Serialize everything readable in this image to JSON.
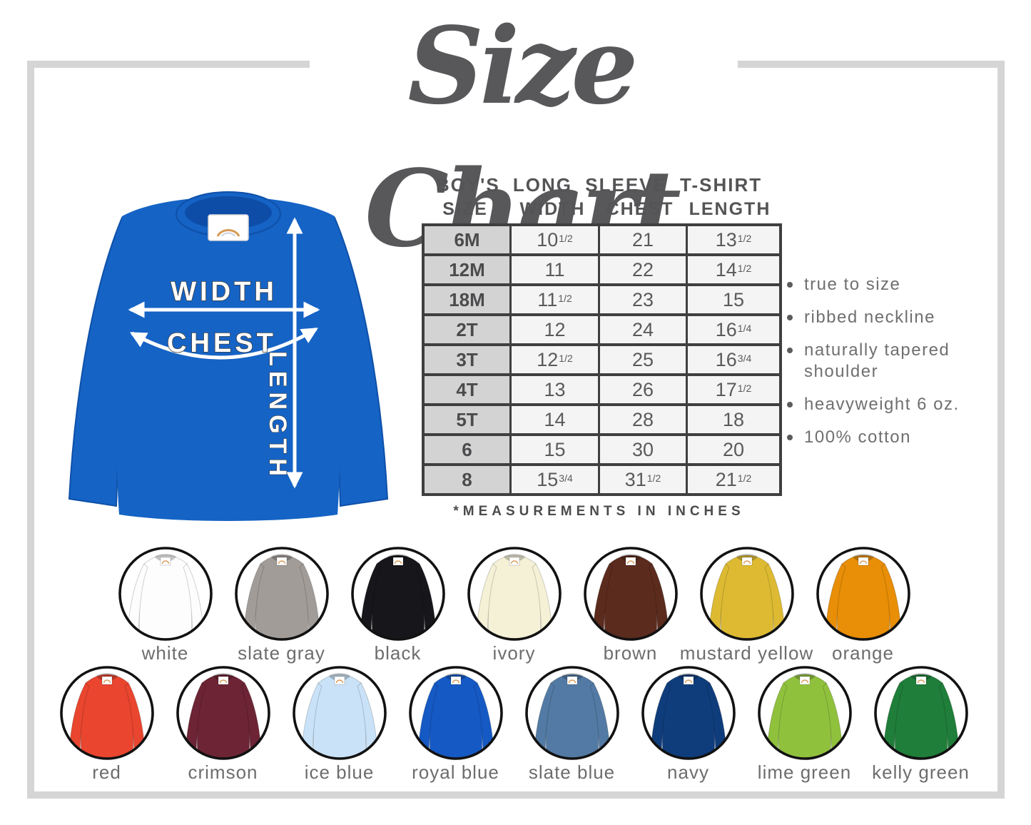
{
  "title": "Size Chart",
  "product": {
    "heading": "BOY'S LONG SLEEVE T-SHIRT",
    "columns": [
      "SIZE",
      "WIDTH",
      "CHEST",
      "LENGTH"
    ],
    "rows": [
      {
        "size": "6M",
        "cells": [
          [
            "10",
            "1/2"
          ],
          [
            "21",
            ""
          ],
          [
            "13",
            "1/2"
          ]
        ]
      },
      {
        "size": "12M",
        "cells": [
          [
            "11",
            ""
          ],
          [
            "22",
            ""
          ],
          [
            "14",
            "1/2"
          ]
        ]
      },
      {
        "size": "18M",
        "cells": [
          [
            "11",
            "1/2"
          ],
          [
            "23",
            ""
          ],
          [
            "15",
            ""
          ]
        ]
      },
      {
        "size": "2T",
        "cells": [
          [
            "12",
            ""
          ],
          [
            "24",
            ""
          ],
          [
            "16",
            "1/4"
          ]
        ]
      },
      {
        "size": "3T",
        "cells": [
          [
            "12",
            "1/2"
          ],
          [
            "25",
            ""
          ],
          [
            "16",
            "3/4"
          ]
        ]
      },
      {
        "size": "4T",
        "cells": [
          [
            "13",
            ""
          ],
          [
            "26",
            ""
          ],
          [
            "17",
            "1/2"
          ]
        ]
      },
      {
        "size": "5T",
        "cells": [
          [
            "14",
            ""
          ],
          [
            "28",
            ""
          ],
          [
            "18",
            ""
          ]
        ]
      },
      {
        "size": "6",
        "cells": [
          [
            "15",
            ""
          ],
          [
            "30",
            ""
          ],
          [
            "20",
            ""
          ]
        ]
      },
      {
        "size": "8",
        "cells": [
          [
            "15",
            "3/4"
          ],
          [
            "31",
            "1/2"
          ],
          [
            "21",
            "1/2"
          ]
        ]
      }
    ],
    "note": "*MEASUREMENTS IN INCHES"
  },
  "diagram": {
    "width_label": "WIDTH",
    "chest_label": "CHEST",
    "length_label": "LENGTH",
    "shirt_color": "#1563c5",
    "shirt_shade": "#0d4da8"
  },
  "features": [
    "true to size",
    "ribbed neckline",
    "naturally tapered shoulder",
    "heavyweight 6 oz.",
    "100% cotton"
  ],
  "swatches": {
    "row1": [
      {
        "label": "white",
        "color": "#fdfdfd"
      },
      {
        "label": "slate gray",
        "color": "#a19c98"
      },
      {
        "label": "black",
        "color": "#17171b"
      },
      {
        "label": "ivory",
        "color": "#f5f1d6"
      },
      {
        "label": "brown",
        "color": "#5b2b1e"
      },
      {
        "label": "mustard yellow",
        "color": "#ddba32"
      },
      {
        "label": "orange",
        "color": "#e88e07"
      }
    ],
    "row2": [
      {
        "label": "red",
        "color": "#e9452f"
      },
      {
        "label": "crimson",
        "color": "#6d2434"
      },
      {
        "label": "ice blue",
        "color": "#c9e2f8"
      },
      {
        "label": "royal blue",
        "color": "#1559c4"
      },
      {
        "label": "slate blue",
        "color": "#527aa4"
      },
      {
        "label": "navy",
        "color": "#0f3d7c"
      },
      {
        "label": "lime green",
        "color": "#90c13d"
      },
      {
        "label": "kelly green",
        "color": "#1f7e39"
      }
    ]
  },
  "frame_color": "#d5d5d5"
}
